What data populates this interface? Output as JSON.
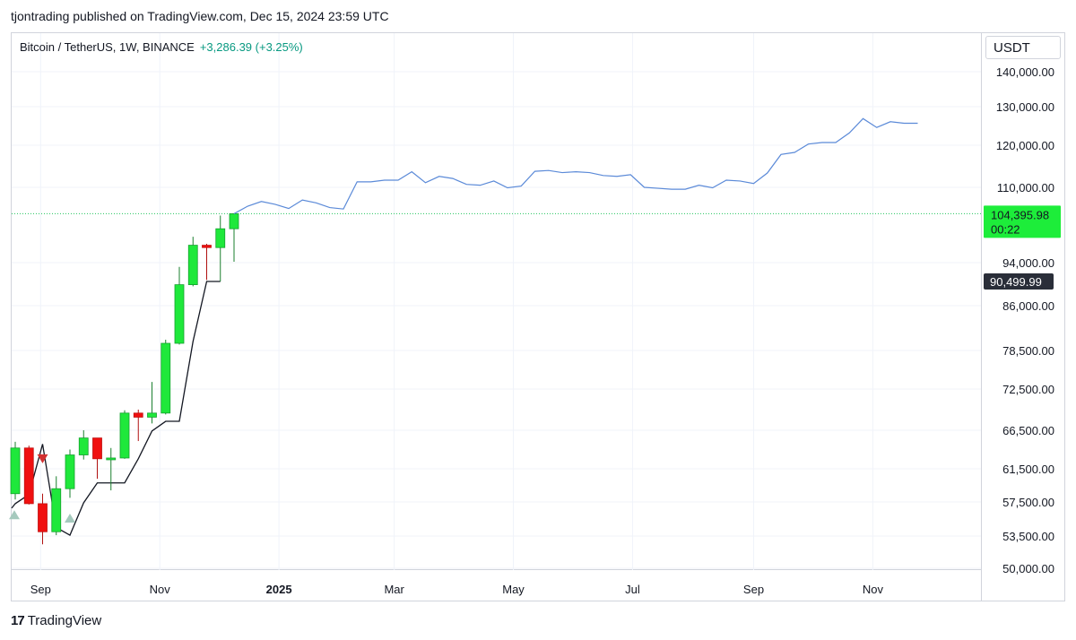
{
  "header": {
    "published_line": "tjontrading published on TradingView.com, Dec 15, 2024 23:59 UTC"
  },
  "legend": {
    "symbol": "Bitcoin / TetherUS, 1W, BINANCE",
    "change": "+3,286.39 (+3.25%)"
  },
  "currency": "USDT",
  "footer": {
    "brand": "TradingView",
    "mark": "17"
  },
  "colors": {
    "up": "#1fe83b",
    "down": "#f01010",
    "projection": "#5b8ad8",
    "moving_line": "#131722",
    "price_tag": "#1ded3a",
    "low_tag": "#2a2e39",
    "grid": "#f0f3fa",
    "marker_down": "#d33131",
    "marker_up": "#a5c9bd"
  },
  "chart_data": {
    "type": "candlestick",
    "title": "Bitcoin / TetherUS, 1W, BINANCE",
    "y_ticks": [
      140000,
      130000,
      120000,
      110000,
      94000,
      86000,
      78500,
      72500,
      66500,
      61500,
      57500,
      53500,
      50000
    ],
    "y_tick_labels": [
      "140,000.00",
      "130,000.00",
      "120,000.00",
      "110,000.00",
      "94,000.00",
      "86,000.00",
      "78,500.00",
      "72,500.00",
      "66,500.00",
      "61,500.00",
      "57,500.00",
      "53,500.00",
      "50,000.00"
    ],
    "x_ticks": [
      {
        "date": "2024-09-01",
        "label": "Sep",
        "bold": false
      },
      {
        "date": "2024-11-01",
        "label": "Nov",
        "bold": false
      },
      {
        "date": "2025-01-01",
        "label": "2025",
        "bold": true
      },
      {
        "date": "2025-03-01",
        "label": "Mar",
        "bold": false
      },
      {
        "date": "2025-05-01",
        "label": "May",
        "bold": false
      },
      {
        "date": "2025-07-01",
        "label": "Jul",
        "bold": false
      },
      {
        "date": "2025-09-01",
        "label": "Sep",
        "bold": false
      },
      {
        "date": "2025-11-01",
        "label": "Nov",
        "bold": false
      }
    ],
    "candles": [
      {
        "date": "2024-08-19",
        "open": 58500,
        "high": 65000,
        "low": 57800,
        "close": 64200
      },
      {
        "date": "2024-08-26",
        "open": 64200,
        "high": 64500,
        "low": 57200,
        "close": 57300
      },
      {
        "date": "2024-09-02",
        "open": 57300,
        "high": 58500,
        "low": 52600,
        "close": 54000
      },
      {
        "date": "2024-09-09",
        "open": 54000,
        "high": 60600,
        "low": 53600,
        "close": 59100
      },
      {
        "date": "2024-09-16",
        "open": 59100,
        "high": 64000,
        "low": 58000,
        "close": 63300
      },
      {
        "date": "2024-09-23",
        "open": 63300,
        "high": 66500,
        "low": 62700,
        "close": 65500
      },
      {
        "date": "2024-09-30",
        "open": 65500,
        "high": 65500,
        "low": 60300,
        "close": 62800
      },
      {
        "date": "2024-10-07",
        "open": 62800,
        "high": 64200,
        "low": 58900,
        "close": 62900
      },
      {
        "date": "2024-10-14",
        "open": 62900,
        "high": 69400,
        "low": 62800,
        "close": 69000
      },
      {
        "date": "2024-10-21",
        "open": 69000,
        "high": 69500,
        "low": 65100,
        "close": 68400
      },
      {
        "date": "2024-10-28",
        "open": 68400,
        "high": 73600,
        "low": 67500,
        "close": 69000
      },
      {
        "date": "2024-11-04",
        "open": 69000,
        "high": 80300,
        "low": 68800,
        "close": 79700
      },
      {
        "date": "2024-11-11",
        "open": 79700,
        "high": 93200,
        "low": 79500,
        "close": 89900
      },
      {
        "date": "2024-11-18",
        "open": 89900,
        "high": 99500,
        "low": 89600,
        "close": 97700
      },
      {
        "date": "2024-11-25",
        "open": 97700,
        "high": 98000,
        "low": 90800,
        "close": 97200
      },
      {
        "date": "2024-12-02",
        "open": 97200,
        "high": 104000,
        "low": 90500,
        "close": 101200
      },
      {
        "date": "2024-12-09",
        "open": 101200,
        "high": 104500,
        "low": 94200,
        "close": 104395.98
      }
    ],
    "moving_line": {
      "dates": [
        "2024-08-19",
        "2024-08-26",
        "2024-09-02",
        "2024-09-09",
        "2024-09-16",
        "2024-09-23",
        "2024-09-30",
        "2024-10-07",
        "2024-10-14",
        "2024-10-21",
        "2024-10-28",
        "2024-11-04",
        "2024-11-11",
        "2024-11-18",
        "2024-11-25",
        "2024-12-02"
      ],
      "values": [
        57300,
        58400,
        64700,
        54500,
        53600,
        57400,
        59800,
        59800,
        59800,
        62800,
        66400,
        67800,
        67800,
        80000,
        90500,
        90500
      ]
    },
    "projection_line": {
      "dates": [
        "2024-12-09",
        "2024-12-16",
        "2024-12-23",
        "2024-12-30",
        "2025-01-06",
        "2025-01-13",
        "2025-01-20",
        "2025-01-27",
        "2025-02-03",
        "2025-02-10",
        "2025-02-17",
        "2025-02-24",
        "2025-03-03",
        "2025-03-10",
        "2025-03-17",
        "2025-03-24",
        "2025-03-31",
        "2025-04-07",
        "2025-04-14",
        "2025-04-21",
        "2025-04-28",
        "2025-05-05",
        "2025-05-12",
        "2025-05-19",
        "2025-05-26",
        "2025-06-02",
        "2025-06-09",
        "2025-06-16",
        "2025-06-23",
        "2025-06-30",
        "2025-07-07",
        "2025-07-14",
        "2025-07-21",
        "2025-07-28",
        "2025-08-04",
        "2025-08-11",
        "2025-08-18",
        "2025-08-25",
        "2025-09-01",
        "2025-09-08",
        "2025-09-15",
        "2025-09-22",
        "2025-09-29",
        "2025-10-06",
        "2025-10-13",
        "2025-10-20",
        "2025-10-27",
        "2025-11-03",
        "2025-11-10",
        "2025-11-17",
        "2025-11-24"
      ],
      "values": [
        104395.98,
        106000,
        107000,
        106400,
        105500,
        107300,
        106700,
        105700,
        105400,
        111300,
        111300,
        111700,
        111700,
        113700,
        111100,
        112600,
        112100,
        110700,
        110500,
        111500,
        109900,
        110300,
        113800,
        114000,
        113500,
        113700,
        113500,
        112800,
        112600,
        113000,
        110000,
        109800,
        109600,
        109600,
        110500,
        109900,
        111700,
        111500,
        110900,
        113400,
        117800,
        118300,
        120300,
        120700,
        120700,
        123200,
        126900,
        124600,
        126100,
        125700,
        125700
      ]
    },
    "markers": [
      {
        "type": "sell",
        "date": "2024-09-02",
        "price": 62800
      },
      {
        "type": "buy",
        "date": "2024-08-12",
        "price": 56000
      },
      {
        "type": "buy",
        "date": "2024-09-16",
        "price": 55600
      }
    ],
    "last_price": {
      "label": "104,395.98",
      "countdown": "00:22",
      "value": 104395.98
    },
    "low_price": {
      "label": "90,499.99",
      "value": 90499.99
    }
  }
}
